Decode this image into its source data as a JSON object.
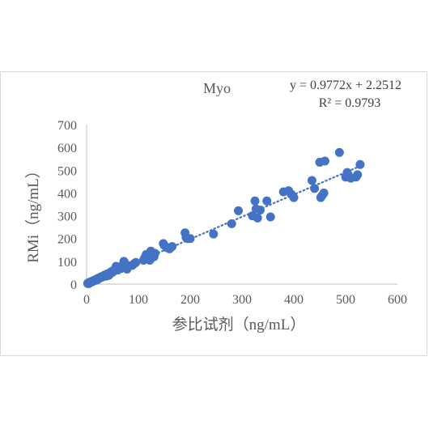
{
  "chart_data": {
    "type": "scatter",
    "title": "Myo",
    "xlabel": "参比试剂（ng/mL）",
    "ylabel": "RMi（ng/mL）",
    "xlim": [
      0,
      600
    ],
    "ylim": [
      0,
      700
    ],
    "x_ticks": [
      "0",
      "100",
      "200",
      "300",
      "400",
      "500",
      "600"
    ],
    "y_ticks": [
      "0",
      "100",
      "200",
      "300",
      "400",
      "500",
      "600",
      "700"
    ],
    "grid": false,
    "legend": "none",
    "marker_color": "#4472c4",
    "trendline": {
      "type": "linear",
      "slope": 0.9772,
      "intercept": 2.2512,
      "style": "dotted",
      "equation_label": "y = 0.9772x + 2.2512",
      "r2_label": "R² = 0.9793"
    },
    "points": [
      [
        2,
        3
      ],
      [
        3,
        5
      ],
      [
        4,
        2
      ],
      [
        5,
        7
      ],
      [
        6,
        6
      ],
      [
        7,
        9
      ],
      [
        8,
        8
      ],
      [
        9,
        11
      ],
      [
        10,
        10
      ],
      [
        11,
        13
      ],
      [
        12,
        12
      ],
      [
        13,
        15
      ],
      [
        14,
        14
      ],
      [
        15,
        17
      ],
      [
        16,
        16
      ],
      [
        17,
        19
      ],
      [
        18,
        20
      ],
      [
        19,
        18
      ],
      [
        20,
        22
      ],
      [
        21,
        24
      ],
      [
        22,
        21
      ],
      [
        23,
        26
      ],
      [
        24,
        25
      ],
      [
        25,
        28
      ],
      [
        26,
        27
      ],
      [
        27,
        30
      ],
      [
        28,
        32
      ],
      [
        30,
        31
      ],
      [
        31,
        34
      ],
      [
        32,
        33
      ],
      [
        34,
        36
      ],
      [
        35,
        40
      ],
      [
        36,
        38
      ],
      [
        38,
        35
      ],
      [
        40,
        45
      ],
      [
        41,
        42
      ],
      [
        43,
        39
      ],
      [
        45,
        50
      ],
      [
        47,
        48
      ],
      [
        48,
        55
      ],
      [
        50,
        52
      ],
      [
        52,
        60
      ],
      [
        53,
        58
      ],
      [
        55,
        65
      ],
      [
        57,
        78
      ],
      [
        60,
        62
      ],
      [
        62,
        70
      ],
      [
        64,
        73
      ],
      [
        66,
        68
      ],
      [
        68,
        80
      ],
      [
        70,
        75
      ],
      [
        72,
        100
      ],
      [
        74,
        92
      ],
      [
        76,
        85
      ],
      [
        78,
        66
      ],
      [
        80,
        80
      ],
      [
        88,
        82
      ],
      [
        92,
        90
      ],
      [
        95,
        95
      ],
      [
        110,
        105
      ],
      [
        112,
        115
      ],
      [
        115,
        130
      ],
      [
        118,
        110
      ],
      [
        120,
        125
      ],
      [
        122,
        105
      ],
      [
        124,
        145
      ],
      [
        127,
        135
      ],
      [
        130,
        120
      ],
      [
        132,
        135
      ],
      [
        148,
        178
      ],
      [
        150,
        170
      ],
      [
        155,
        160
      ],
      [
        160,
        155
      ],
      [
        165,
        165
      ],
      [
        190,
        225
      ],
      [
        192,
        205
      ],
      [
        195,
        200
      ],
      [
        200,
        200
      ],
      [
        245,
        220
      ],
      [
        280,
        265
      ],
      [
        293,
        322
      ],
      [
        320,
        300
      ],
      [
        325,
        365
      ],
      [
        327,
        330
      ],
      [
        330,
        290
      ],
      [
        335,
        325
      ],
      [
        348,
        365
      ],
      [
        355,
        295
      ],
      [
        380,
        405
      ],
      [
        390,
        410
      ],
      [
        395,
        395
      ],
      [
        400,
        380
      ],
      [
        435,
        455
      ],
      [
        440,
        420
      ],
      [
        450,
        535
      ],
      [
        452,
        380
      ],
      [
        455,
        390
      ],
      [
        458,
        400
      ],
      [
        460,
        540
      ],
      [
        488,
        578
      ],
      [
        500,
        470
      ],
      [
        503,
        490
      ],
      [
        505,
        480
      ],
      [
        510,
        465
      ],
      [
        520,
        470
      ],
      [
        523,
        480
      ],
      [
        528,
        525
      ]
    ]
  }
}
